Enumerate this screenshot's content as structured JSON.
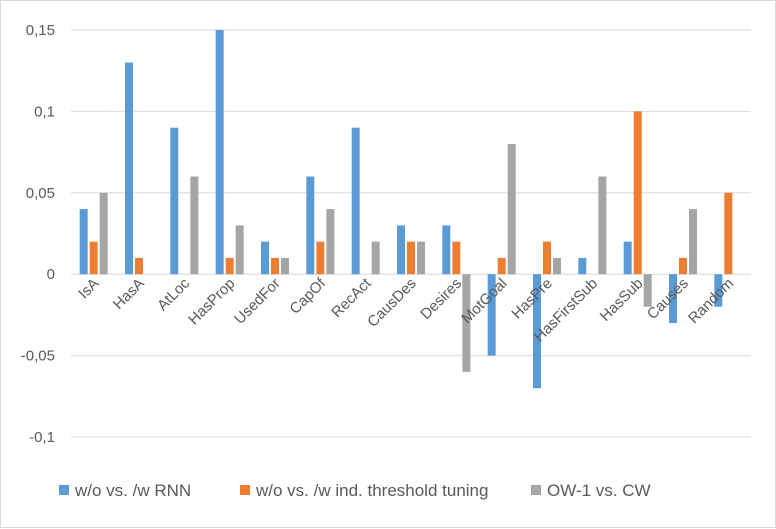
{
  "chart_data": {
    "type": "bar",
    "title": "",
    "xlabel": "",
    "ylabel": "",
    "categories": [
      "IsA",
      "HasA",
      "AtLoc",
      "HasProp",
      "UsedFor",
      "CapOf",
      "RecAct",
      "CausDes",
      "Desires",
      "MotGoal",
      "HasPre",
      "HasFirstSub",
      "HasSub",
      "Causes",
      "Random"
    ],
    "series": [
      {
        "name": "w/o vs. /w RNN",
        "color": "#5b9bd5",
        "values": [
          0.04,
          0.13,
          0.09,
          0.15,
          0.02,
          0.06,
          0.09,
          0.03,
          0.03,
          -0.05,
          -0.07,
          0.01,
          0.02,
          -0.03,
          -0.02
        ]
      },
      {
        "name": "w/o vs. /w ind. threshold tuning",
        "color": "#ed7d31",
        "values": [
          0.02,
          0.01,
          0,
          0.01,
          0.01,
          0.02,
          0,
          0.02,
          0.02,
          0.01,
          0.02,
          0,
          0.1,
          0.01,
          0.05
        ]
      },
      {
        "name": "OW-1 vs. CW",
        "color": "#a5a5a5",
        "values": [
          0.05,
          0,
          0.06,
          0.03,
          0.01,
          0.04,
          0.02,
          0.02,
          -0.06,
          0.08,
          0.01,
          0.06,
          -0.02,
          0.04,
          0
        ]
      }
    ],
    "ylim": [
      -0.1,
      0.15
    ],
    "yticks": [
      -0.1,
      -0.05,
      0,
      0.05,
      0.1,
      0.15
    ],
    "ytick_labels": [
      "-0,1",
      "-0,05",
      "0",
      "0,05",
      "0,1",
      "0,15"
    ],
    "grid": true,
    "legend": "bottom",
    "gridline_color": "#d9d9d9"
  }
}
